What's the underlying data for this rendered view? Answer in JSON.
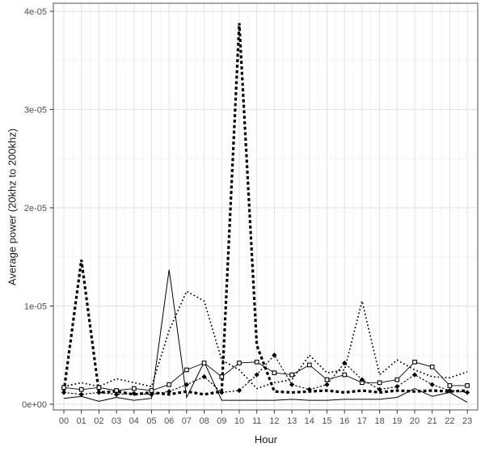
{
  "figure": {
    "background_color": "#ffffff",
    "panel_background_color": "#ffffff",
    "panel_border_color": "#6e6e6e",
    "grid_major_color": "#e2e2e2",
    "grid_minor_color": "#f1f1f1",
    "axis_tick_color": "#333333",
    "axis_text_color": "#4d4d4d",
    "axis_title_color": "#1a1a1a",
    "series_color": "#000000"
  },
  "chart_data": {
    "type": "line",
    "title": "",
    "xlabel": "Hour",
    "ylabel": "Average power (20khz to 200khz)",
    "x_categories": [
      "00",
      "01",
      "02",
      "03",
      "04",
      "05",
      "06",
      "07",
      "08",
      "09",
      "10",
      "11",
      "12",
      "13",
      "14",
      "15",
      "16",
      "17",
      "18",
      "19",
      "20",
      "21",
      "22",
      "23"
    ],
    "y_tick_labels": [
      "0e+00",
      "1e-05",
      "2e-05",
      "3e-05",
      "4e-05"
    ],
    "y_tick_values": [
      0,
      1e-05,
      2e-05,
      3e-05,
      4e-05
    ],
    "ylim": [
      0,
      4.15e-05
    ],
    "grid": "major horizontal and vertical light gray; minor gridlines at half-steps, lighter; white panel with gray border",
    "legend": "none",
    "series": [
      {
        "name": "solid-thin-line",
        "line": "solid",
        "marker": "none",
        "stroke_width": 1,
        "dash": "",
        "color": "#000000",
        "values": [
          6e-07,
          8e-07,
          3e-07,
          7e-07,
          4e-07,
          6e-07,
          1.37e-05,
          7e-07,
          4.3e-06,
          4e-07,
          4e-07,
          4e-07,
          4e-07,
          5e-07,
          4e-07,
          4e-07,
          5e-07,
          5e-07,
          5e-07,
          7e-07,
          1.6e-06,
          8e-07,
          1.2e-06,
          2e-07
        ]
      },
      {
        "name": "heavy-dashed-line",
        "line": "heavy-dash",
        "marker": "none",
        "stroke_width": 3.2,
        "dash": "3.8 3",
        "color": "#000000",
        "values": [
          1.3e-06,
          1.47e-05,
          1.2e-06,
          1.3e-06,
          1e-06,
          1.2e-06,
          1e-06,
          1.3e-06,
          1e-06,
          1.3e-06,
          3.88e-05,
          6e-06,
          1.3e-06,
          1.2e-06,
          1.3e-06,
          1.4e-06,
          1.2e-06,
          1.4e-06,
          1.2e-06,
          1.4e-06,
          1.3e-06,
          1.4e-06,
          1.3e-06,
          1.4e-06
        ]
      },
      {
        "name": "fine-dotted-line",
        "line": "dotted",
        "marker": "none",
        "stroke_width": 1.7,
        "dash": "1.7 2.9",
        "color": "#000000",
        "values": [
          1.8e-06,
          2.2e-06,
          1.8e-06,
          2.6e-06,
          2.2e-06,
          1.8e-06,
          7.5e-06,
          1.15e-05,
          1.05e-05,
          4.5e-06,
          3.5e-06,
          1.6e-06,
          2.2e-06,
          2.5e-06,
          5e-06,
          3.2e-06,
          3.5e-06,
          1.05e-05,
          3e-06,
          4.5e-06,
          3.5e-06,
          2.8e-06,
          2.7e-06,
          3.3e-06
        ]
      },
      {
        "name": "open-square-marker-line",
        "line": "thin-solid",
        "marker": "open-square",
        "stroke_width": 0.9,
        "dash": "",
        "color": "#000000",
        "values": [
          1.7e-06,
          1.5e-06,
          1.7e-06,
          1.4e-06,
          1.6e-06,
          1.4e-06,
          2e-06,
          3.5e-06,
          4.2e-06,
          2.8e-06,
          4.2e-06,
          4.3e-06,
          3.2e-06,
          3e-06,
          4e-06,
          2.5e-06,
          3e-06,
          2.2e-06,
          2.2e-06,
          2.5e-06,
          4.3e-06,
          3.8e-06,
          1.9e-06,
          1.9e-06
        ]
      },
      {
        "name": "filled-diamond-marker-line",
        "line": "short-dash",
        "marker": "filled-diamond",
        "stroke_width": 1.1,
        "dash": "2.5 2",
        "color": "#000000",
        "values": [
          1.2e-06,
          1e-06,
          1.2e-06,
          1e-06,
          1.1e-06,
          1e-06,
          1.3e-06,
          2e-06,
          2.8e-06,
          1.2e-06,
          1.4e-06,
          3e-06,
          5e-06,
          2e-06,
          1.5e-06,
          2e-06,
          4.2e-06,
          2.5e-06,
          1.5e-06,
          1.8e-06,
          3e-06,
          2e-06,
          1.4e-06,
          1.2e-06
        ]
      }
    ]
  }
}
